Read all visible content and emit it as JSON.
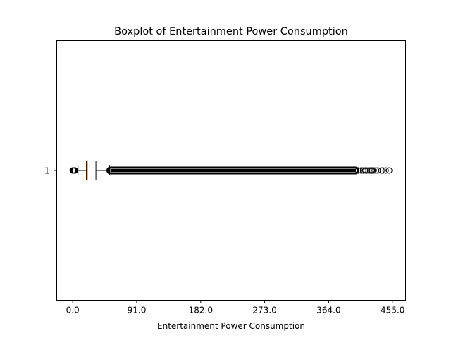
{
  "chart_data": {
    "type": "boxplot",
    "orientation": "horizontal",
    "title": "Boxplot of Entertainment Power Consumption",
    "xlabel": "Entertainment Power Consumption",
    "ylabel": "",
    "xlim": [
      -22.7,
      473.3
    ],
    "xticks": [
      0.0,
      91.0,
      182.0,
      273.0,
      364.0,
      455.0
    ],
    "xtick_labels": [
      "0.0",
      "91.0",
      "182.0",
      "273.0",
      "364.0",
      "455.0"
    ],
    "categories": [
      "1"
    ],
    "boxes": [
      {
        "label": "1",
        "whisker_low": 7.5,
        "q1": 19.5,
        "median": 21.0,
        "q3": 33.0,
        "whisker_high": 52.5,
        "low_outliers": [
          0.0,
          0.6,
          1.2,
          1.9,
          2.7,
          3.4
        ],
        "high_outlier_band": [
          53.5,
          402.0
        ],
        "high_outliers": [
          406,
          410,
          413,
          416,
          418,
          421,
          423,
          425,
          426,
          428,
          431,
          434,
          439,
          441,
          445,
          450
        ]
      }
    ],
    "colors": {
      "box": "#000000",
      "median": "#ff7f0e",
      "outlier": "#000000"
    },
    "grid": false
  }
}
